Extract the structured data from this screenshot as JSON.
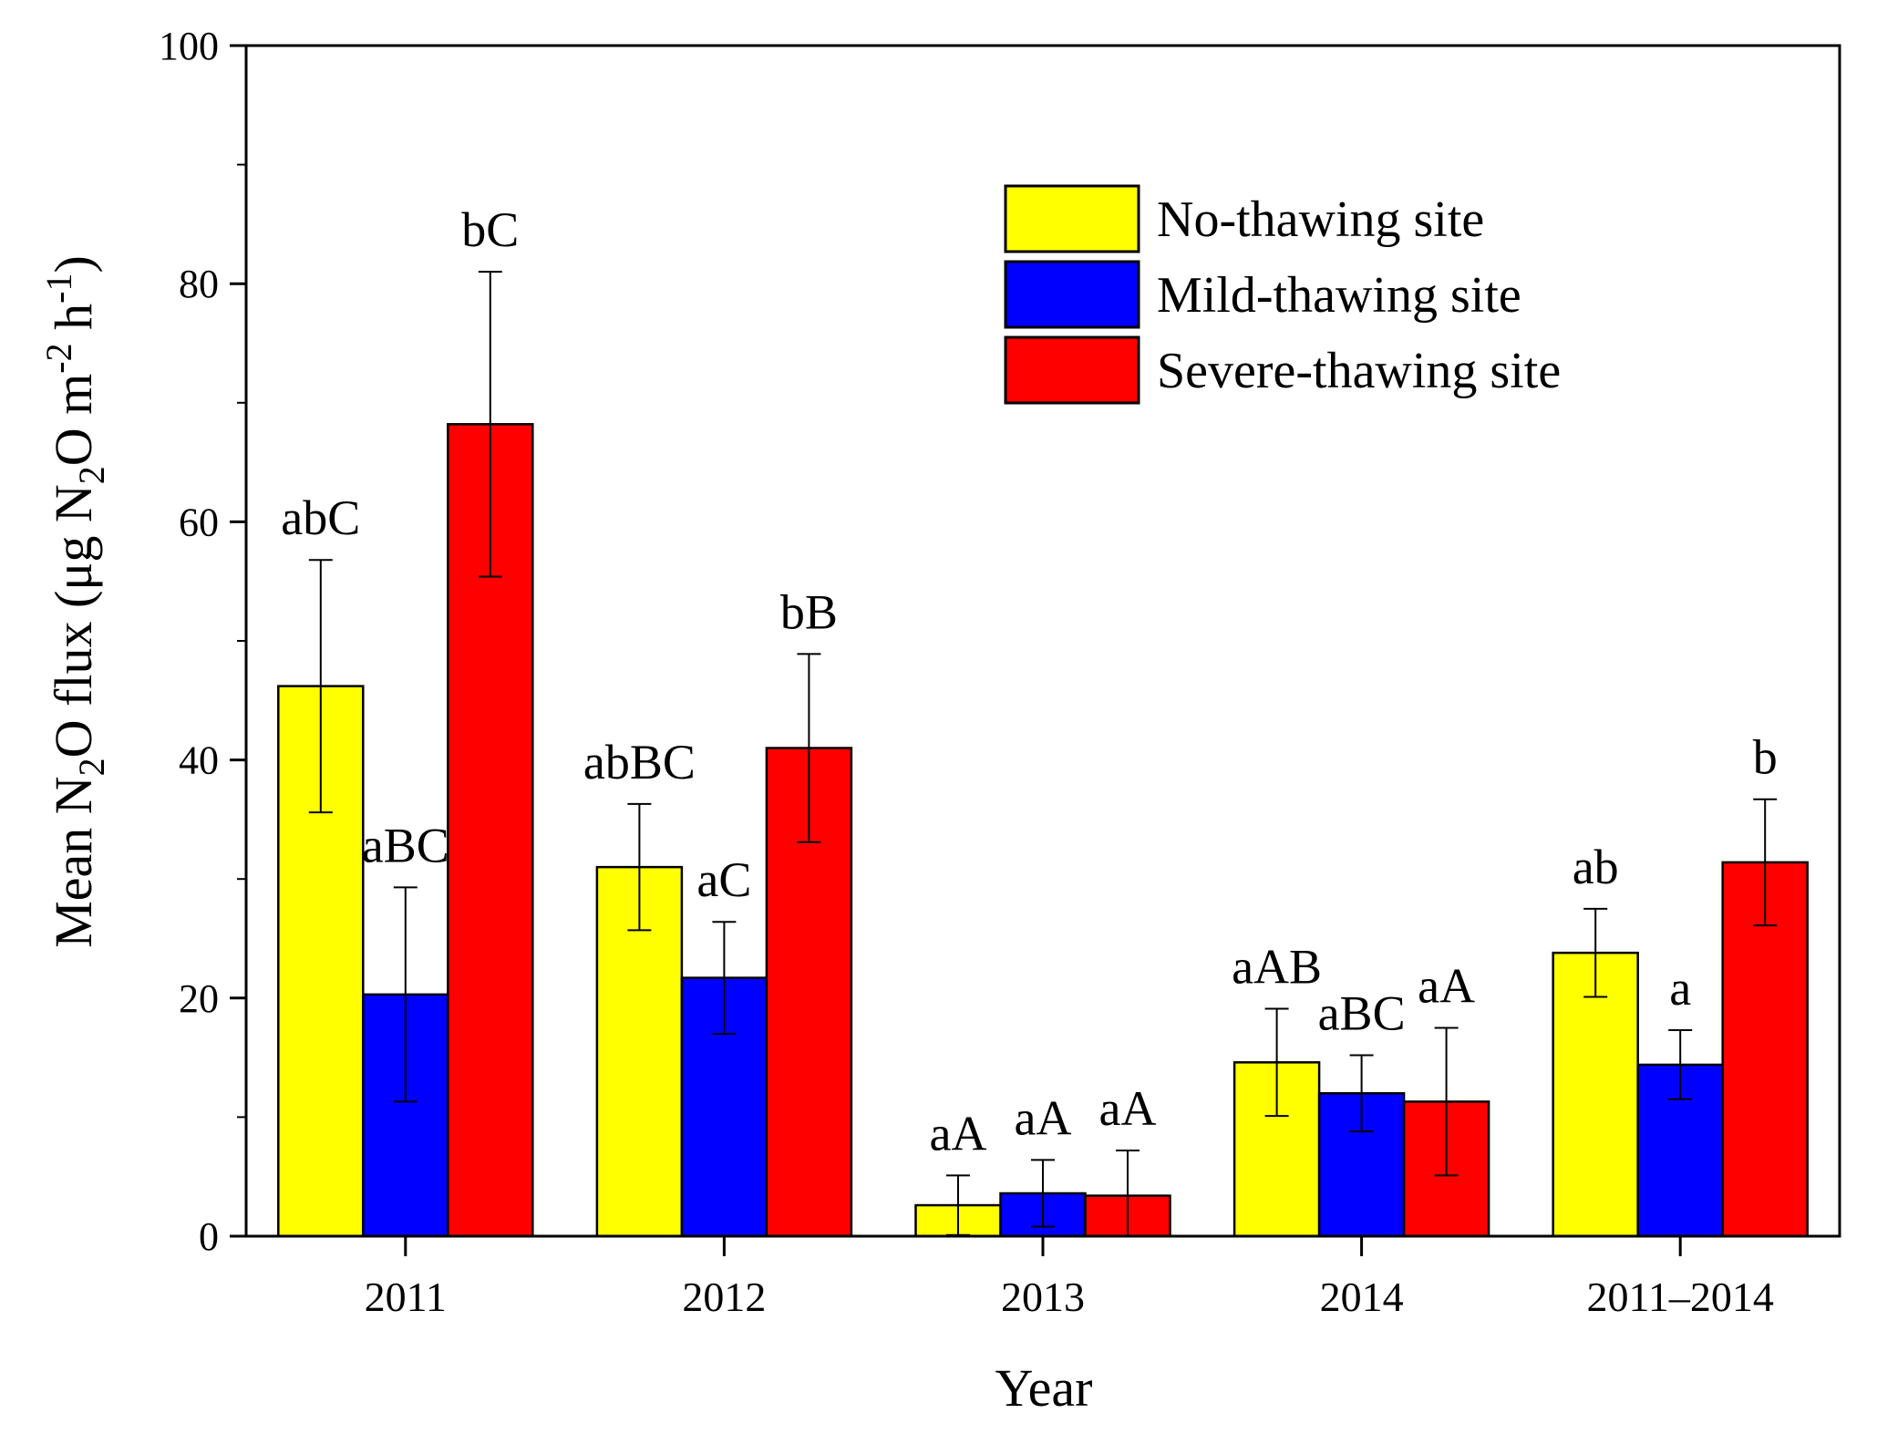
{
  "chart_data": {
    "type": "bar",
    "xlabel": "Year",
    "ylabel": {
      "prefix": "Mean N",
      "sub1": "2",
      "mid": "O flux (μg N",
      "sub2": "2",
      "mid2": "O m",
      "sup1": "-2",
      "mid3": " h",
      "sup2": "-1",
      "suffix": ")"
    },
    "ylim": [
      0,
      100
    ],
    "yticks": [
      0,
      20,
      40,
      60,
      80,
      100
    ],
    "categories": [
      "2011",
      "2012",
      "2013",
      "2014",
      "2011–2014"
    ],
    "legend_position": "top-right",
    "series": [
      {
        "name": "No-thawing site",
        "color": "#ffff00",
        "values": [
          46.2,
          31.0,
          2.6,
          14.6,
          23.8
        ],
        "errors": [
          10.6,
          5.3,
          2.5,
          4.5,
          3.7
        ],
        "labels": [
          "abC",
          "abBC",
          "aA",
          "aAB",
          "ab"
        ]
      },
      {
        "name": "Mild-thawing site",
        "color": "#0000ff",
        "values": [
          20.3,
          21.7,
          3.6,
          12.0,
          14.4
        ],
        "errors": [
          9.0,
          4.7,
          2.8,
          3.2,
          2.9
        ],
        "labels": [
          "aBC",
          "aC",
          "aA",
          "aBC",
          "a"
        ]
      },
      {
        "name": "Severe-thawing site",
        "color": "#ff0000",
        "values": [
          68.2,
          41.0,
          3.4,
          11.3,
          31.4
        ],
        "errors": [
          12.8,
          7.9,
          3.8,
          6.2,
          5.3
        ],
        "labels": [
          "bC",
          "bB",
          "aA",
          "aA",
          "b"
        ]
      }
    ]
  }
}
